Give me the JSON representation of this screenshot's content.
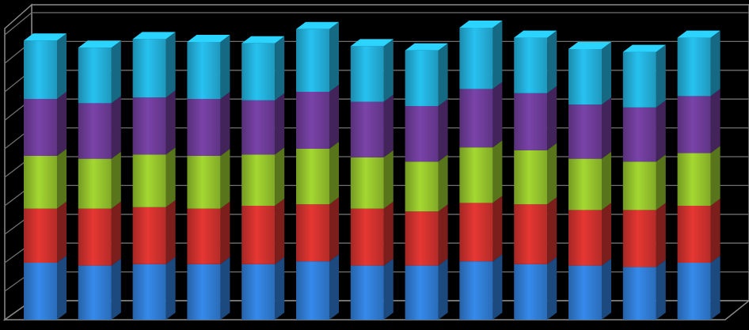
{
  "chart_data": {
    "type": "bar",
    "stacked": true,
    "three_d": true,
    "categories": [
      "",
      "",
      "",
      "",
      "",
      "",
      "",
      "",
      "",
      "",
      "",
      "",
      ""
    ],
    "ylim": [
      0,
      100
    ],
    "grid": true,
    "legend": "none",
    "title": "",
    "xlabel": "",
    "ylabel": "",
    "series": [
      {
        "color": "#2f78cc",
        "values": [
          20,
          19,
          19.5,
          19.5,
          19.5,
          20.5,
          19,
          19,
          20.5,
          19.5,
          19,
          18.5,
          20
        ]
      },
      {
        "color": "#c8302c",
        "values": [
          19,
          20,
          20,
          19.5,
          20.5,
          20,
          20,
          19,
          20.5,
          21,
          19.5,
          20,
          20
        ]
      },
      {
        "color": "#8fbc2b",
        "values": [
          18.5,
          17.5,
          18.5,
          18.5,
          18,
          19.5,
          18,
          17.5,
          19.5,
          19,
          18,
          17,
          18.5
        ]
      },
      {
        "color": "#6a3a93",
        "values": [
          20,
          19.5,
          20,
          20,
          19,
          20,
          19.5,
          19.5,
          20.5,
          20,
          19,
          19,
          20
        ]
      },
      {
        "color": "#22a9d2",
        "values": [
          20.5,
          19.5,
          20.5,
          20,
          20,
          22,
          19.5,
          19.5,
          21.5,
          19.5,
          19.5,
          19.5,
          20.5
        ]
      }
    ]
  }
}
